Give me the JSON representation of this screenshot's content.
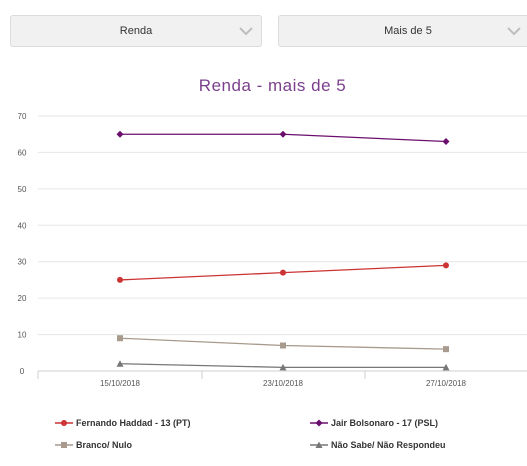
{
  "filters": {
    "filter1": {
      "value": "Renda",
      "icon": "chevron-down-icon"
    },
    "filter2": {
      "value": "Mais de 5",
      "icon": "chevron-down-icon"
    }
  },
  "chart_data": {
    "type": "line",
    "title": "Renda - mais de 5",
    "xlabel": "",
    "ylabel": "",
    "categories": [
      "15/10/2018",
      "23/10/2018",
      "27/10/2018"
    ],
    "ylim": [
      0,
      70
    ],
    "yticks": [
      0,
      10,
      20,
      30,
      40,
      50,
      60,
      70
    ],
    "grid": true,
    "legend_position": "bottom",
    "series": [
      {
        "name": "Fernando Haddad - 13 (PT)",
        "values": [
          25,
          27,
          29
        ],
        "color": "#cc3333",
        "marker": "circle"
      },
      {
        "name": "Jair Bolsonaro - 17 (PSL)",
        "values": [
          65,
          65,
          63
        ],
        "color": "#6b0f6e",
        "marker": "diamond"
      },
      {
        "name": "Branco/ Nulo",
        "values": [
          9,
          7,
          6
        ],
        "color": "#a89a8c",
        "marker": "square"
      },
      {
        "name": "Não Sabe/ Não Respondeu",
        "values": [
          2,
          1,
          1
        ],
        "color": "#777777",
        "marker": "triangle"
      }
    ]
  }
}
